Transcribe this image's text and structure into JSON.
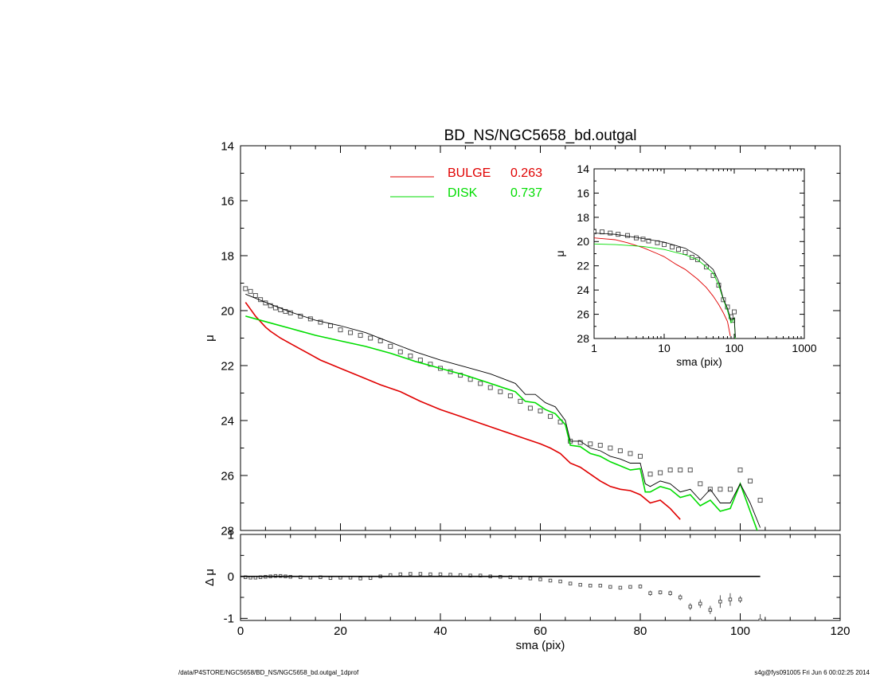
{
  "chart_data": [
    {
      "type": "scatter",
      "panel": "main",
      "title": "BD_NS/NGC5658_bd.outgal",
      "xlabel": "",
      "ylabel": "μ",
      "xlim": [
        0,
        120
      ],
      "ylim": [
        28,
        14
      ],
      "y_inverted": true,
      "xticks": [
        0,
        20,
        40,
        60,
        80,
        100,
        120
      ],
      "yticks": [
        14,
        16,
        18,
        20,
        22,
        24,
        26,
        28
      ],
      "legend": [
        {
          "label": "BULGE",
          "value": "0.263",
          "color": "#e00000"
        },
        {
          "label": "DISK",
          "value": "0.737",
          "color": "#00dd00"
        }
      ],
      "series": [
        {
          "name": "data",
          "kind": "points",
          "color": "#555555",
          "x": [
            1,
            2,
            3,
            4,
            5,
            6,
            7,
            8,
            9,
            10,
            12,
            14,
            16,
            18,
            20,
            22,
            24,
            26,
            28,
            30,
            32,
            34,
            36,
            38,
            40,
            42,
            44,
            46,
            48,
            50,
            52,
            54,
            56,
            58,
            60,
            62,
            64,
            66,
            68,
            70,
            72,
            74,
            76,
            78,
            80,
            82,
            84,
            86,
            88,
            90,
            92,
            94,
            96,
            98,
            100,
            102,
            104
          ],
          "y": [
            19.2,
            19.3,
            19.45,
            19.6,
            19.72,
            19.82,
            19.9,
            19.97,
            20.03,
            20.08,
            20.2,
            20.3,
            20.42,
            20.55,
            20.7,
            20.8,
            20.9,
            21.0,
            21.1,
            21.3,
            21.5,
            21.65,
            21.8,
            21.95,
            22.1,
            22.22,
            22.35,
            22.5,
            22.65,
            22.8,
            22.95,
            23.1,
            23.3,
            23.55,
            23.65,
            23.85,
            24.05,
            24.75,
            24.8,
            24.85,
            24.9,
            25.0,
            25.1,
            25.2,
            25.3,
            25.95,
            25.9,
            25.8,
            25.8,
            25.8,
            26.3,
            26.5,
            26.5,
            26.5,
            25.8,
            26.2,
            26.9
          ]
        },
        {
          "name": "bulge",
          "kind": "line",
          "color": "#e00000",
          "x": [
            1,
            2,
            3,
            4,
            5,
            6,
            8,
            10,
            12,
            14,
            16,
            18,
            20,
            24,
            28,
            32,
            36,
            40,
            44,
            48,
            52,
            56,
            60,
            62,
            64,
            66,
            68,
            70,
            72,
            74,
            76,
            78,
            80,
            82,
            84,
            86,
            88
          ],
          "y": [
            19.7,
            19.95,
            20.2,
            20.4,
            20.6,
            20.75,
            21.0,
            21.2,
            21.4,
            21.6,
            21.8,
            21.95,
            22.1,
            22.4,
            22.7,
            22.95,
            23.3,
            23.6,
            23.85,
            24.1,
            24.35,
            24.6,
            24.85,
            25.0,
            25.2,
            25.55,
            25.7,
            25.95,
            26.2,
            26.4,
            26.5,
            26.55,
            26.7,
            27.0,
            26.9,
            27.2,
            27.6
          ]
        },
        {
          "name": "disk",
          "kind": "line",
          "color": "#00dd00",
          "x": [
            1,
            5,
            10,
            15,
            20,
            25,
            30,
            35,
            40,
            45,
            50,
            55,
            57,
            59,
            61,
            63,
            65,
            66,
            68,
            70,
            72,
            74,
            76,
            78,
            80,
            81,
            82,
            84,
            86,
            88,
            90,
            92,
            94,
            96,
            98,
            100,
            102,
            104
          ],
          "y": [
            20.2,
            20.4,
            20.65,
            20.9,
            21.1,
            21.3,
            21.55,
            21.85,
            22.1,
            22.35,
            22.65,
            22.95,
            23.3,
            23.35,
            23.6,
            23.75,
            24.15,
            24.9,
            24.95,
            25.2,
            25.3,
            25.5,
            25.65,
            25.8,
            25.75,
            26.6,
            26.6,
            26.4,
            26.5,
            26.8,
            26.7,
            27.1,
            26.9,
            27.3,
            27.2,
            26.3,
            27.3,
            28.3
          ]
        },
        {
          "name": "model",
          "kind": "line",
          "color": "#000000",
          "x": [
            1,
            5,
            10,
            15,
            20,
            25,
            30,
            35,
            40,
            45,
            50,
            55,
            57,
            59,
            61,
            63,
            65,
            66,
            68,
            70,
            72,
            74,
            76,
            78,
            80,
            81,
            82,
            84,
            86,
            88,
            90,
            92,
            94,
            96,
            98,
            100,
            102,
            104
          ],
          "y": [
            19.4,
            19.7,
            20.05,
            20.35,
            20.55,
            20.8,
            21.15,
            21.5,
            21.8,
            22.05,
            22.3,
            22.65,
            23.05,
            23.05,
            23.35,
            23.5,
            24.0,
            24.75,
            24.75,
            25.0,
            25.1,
            25.3,
            25.4,
            25.55,
            25.55,
            26.3,
            26.4,
            26.2,
            26.3,
            26.6,
            26.5,
            26.9,
            26.5,
            27.0,
            27.0,
            26.3,
            27.0,
            27.9
          ]
        }
      ]
    },
    {
      "type": "scatter",
      "panel": "inset",
      "xlabel": "sma (pix)",
      "ylabel": "μ",
      "xscale": "log",
      "xlim": [
        1,
        1000
      ],
      "ylim": [
        28,
        14
      ],
      "y_inverted": true,
      "xticks": [
        1,
        10,
        100,
        1000
      ],
      "yticks": [
        14,
        16,
        18,
        20,
        22,
        24,
        26,
        28
      ],
      "series": [
        {
          "name": "data",
          "kind": "points",
          "color": "#555555",
          "x": [
            1,
            1.3,
            1.7,
            2.2,
            3,
            4,
            5,
            6,
            8,
            10,
            13,
            16,
            20,
            25,
            30,
            40,
            50,
            60,
            70,
            80,
            90,
            95,
            100
          ],
          "y": [
            19.2,
            19.2,
            19.3,
            19.4,
            19.5,
            19.7,
            19.8,
            19.95,
            20.1,
            20.25,
            20.45,
            20.65,
            20.9,
            21.3,
            21.5,
            22.1,
            22.8,
            23.6,
            24.8,
            25.4,
            26.2,
            26.5,
            25.8
          ]
        },
        {
          "name": "bulge",
          "kind": "line",
          "color": "#e00000",
          "x": [
            1,
            2,
            3,
            5,
            8,
            10,
            15,
            20,
            30,
            40,
            50,
            60,
            70,
            80,
            88
          ],
          "y": [
            19.7,
            19.85,
            20.1,
            20.5,
            21.0,
            21.25,
            21.9,
            22.3,
            23.1,
            23.8,
            24.5,
            25.2,
            25.9,
            26.6,
            27.8
          ]
        },
        {
          "name": "disk",
          "kind": "line",
          "color": "#00dd00",
          "x": [
            1,
            2,
            5,
            10,
            20,
            30,
            40,
            50,
            60,
            70,
            80,
            90,
            100,
            104
          ],
          "y": [
            20.2,
            20.25,
            20.4,
            20.65,
            21.1,
            21.5,
            22.1,
            22.6,
            23.6,
            24.8,
            25.7,
            26.7,
            26.3,
            28.3
          ]
        },
        {
          "name": "model",
          "kind": "line",
          "color": "#000000",
          "x": [
            1,
            2,
            5,
            10,
            20,
            30,
            40,
            50,
            60,
            70,
            80,
            90,
            100,
            104
          ],
          "y": [
            19.3,
            19.4,
            19.75,
            20.05,
            20.55,
            21.15,
            21.8,
            22.3,
            23.3,
            24.75,
            25.5,
            26.5,
            26.3,
            27.9
          ]
        }
      ]
    },
    {
      "type": "scatter",
      "panel": "residual",
      "xlabel": "sma (pix)",
      "ylabel": "Δ μ",
      "xlim": [
        0,
        120
      ],
      "ylim": [
        -1.05,
        1
      ],
      "xticks": [
        0,
        20,
        40,
        60,
        80,
        100,
        120
      ],
      "yticks": [
        1,
        0,
        -1
      ],
      "series": [
        {
          "name": "residual",
          "kind": "points",
          "color": "#555555",
          "x": [
            1,
            2,
            3,
            4,
            5,
            6,
            7,
            8,
            9,
            10,
            12,
            14,
            16,
            18,
            20,
            22,
            24,
            26,
            28,
            30,
            32,
            34,
            36,
            38,
            40,
            42,
            44,
            46,
            48,
            50,
            52,
            54,
            56,
            58,
            60,
            62,
            64,
            66,
            68,
            70,
            72,
            74,
            76,
            78,
            80,
            82,
            84,
            86,
            88,
            90,
            92,
            94,
            96,
            98,
            100,
            104
          ],
          "y": [
            -0.02,
            -0.03,
            -0.03,
            -0.02,
            -0.01,
            0.0,
            0.01,
            0.01,
            0.0,
            -0.01,
            -0.02,
            -0.03,
            -0.02,
            -0.04,
            -0.03,
            -0.03,
            -0.05,
            -0.04,
            0.0,
            0.03,
            0.05,
            0.06,
            0.06,
            0.05,
            0.05,
            0.04,
            0.03,
            0.02,
            0.02,
            0.0,
            -0.01,
            -0.02,
            -0.03,
            -0.05,
            -0.07,
            -0.1,
            -0.12,
            -0.17,
            -0.2,
            -0.22,
            -0.22,
            -0.25,
            -0.27,
            -0.25,
            -0.24,
            -0.4,
            -0.38,
            -0.4,
            -0.5,
            -0.72,
            -0.65,
            -0.8,
            -0.6,
            -0.55,
            -0.55,
            -1.05
          ],
          "err": [
            0,
            0,
            0,
            0,
            0,
            0,
            0,
            0,
            0,
            0,
            0,
            0,
            0,
            0,
            0,
            0,
            0,
            0,
            0,
            0,
            0,
            0,
            0,
            0,
            0,
            0,
            0,
            0,
            0,
            0,
            0,
            0,
            0,
            0,
            0,
            0,
            0,
            0,
            0,
            0,
            0,
            0,
            0,
            0,
            0.05,
            0.06,
            0.05,
            0.06,
            0.07,
            0.08,
            0.1,
            0.1,
            0.15,
            0.15,
            0.08,
            0.15
          ]
        },
        {
          "name": "zero",
          "kind": "line",
          "color": "#000000",
          "x": [
            0,
            104
          ],
          "y": [
            0,
            0
          ]
        }
      ]
    }
  ],
  "footer": {
    "left": "/data/P4STORE/NGC5658/BD_NS/NGC5658_bd.outgal_1dprof",
    "right": "s4g@fys091005  Fri Jun  6 00:02:25 2014"
  }
}
